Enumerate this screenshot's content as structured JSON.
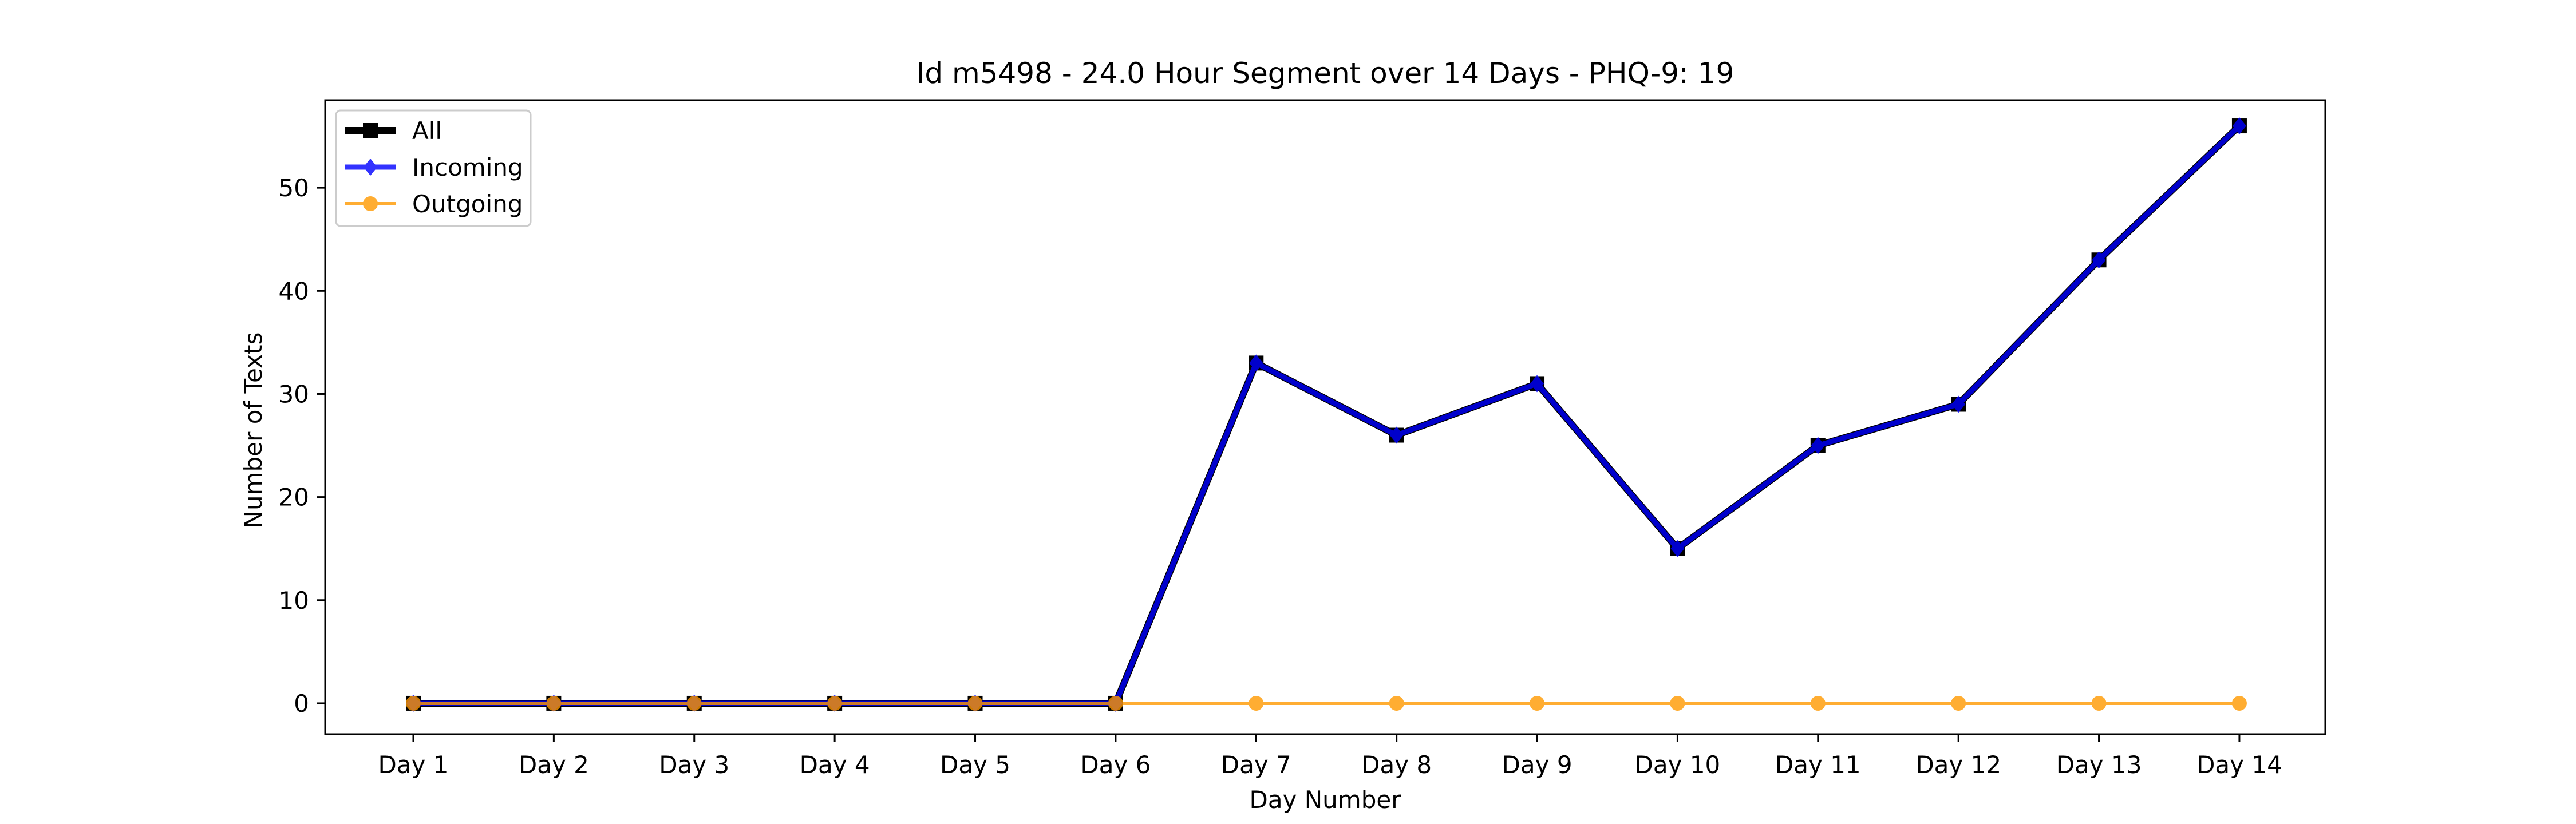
{
  "chart_data": {
    "type": "line",
    "title": "Id m5498 - 24.0 Hour Segment over 14 Days - PHQ-9: 19",
    "xlabel": "Day Number",
    "ylabel": "Number of Texts",
    "categories": [
      "Day 1",
      "Day 2",
      "Day 3",
      "Day 4",
      "Day 5",
      "Day 6",
      "Day 7",
      "Day 8",
      "Day 9",
      "Day 10",
      "Day 11",
      "Day 12",
      "Day 13",
      "Day 14"
    ],
    "ylim": [
      -3,
      58.5
    ],
    "yticks": [
      0,
      10,
      20,
      30,
      40,
      50
    ],
    "grid": false,
    "legend_position": "upper-left",
    "series": [
      {
        "name": "All",
        "color": "#000000",
        "marker": "square",
        "values": [
          0,
          0,
          0,
          0,
          0,
          0,
          33,
          26,
          31,
          15,
          25,
          29,
          43,
          56
        ]
      },
      {
        "name": "Incoming",
        "color": "#0000ff",
        "marker": "diamond",
        "values": [
          0,
          0,
          0,
          0,
          0,
          0,
          33,
          26,
          31,
          15,
          25,
          29,
          43,
          56
        ]
      },
      {
        "name": "Outgoing",
        "color": "#ff9900",
        "marker": "circle",
        "values": [
          0,
          0,
          0,
          0,
          0,
          0,
          0,
          0,
          0,
          0,
          0,
          0,
          0,
          0
        ]
      }
    ]
  }
}
